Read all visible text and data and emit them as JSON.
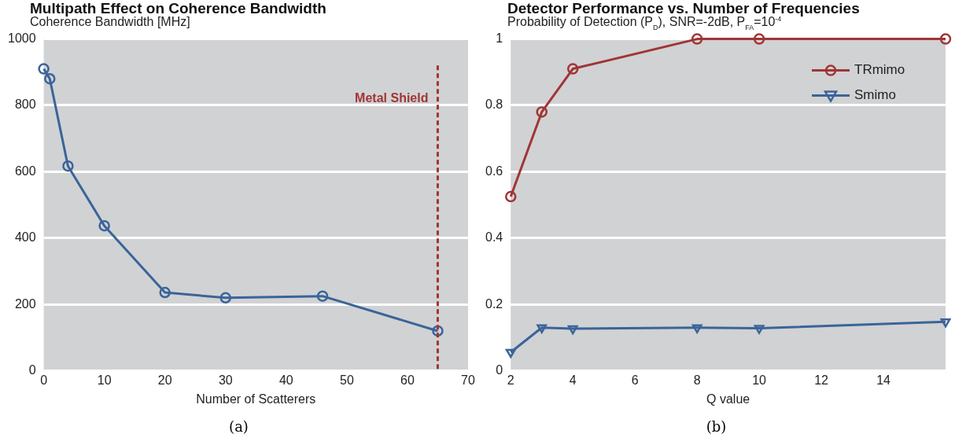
{
  "chart_data": [
    {
      "type": "line",
      "title": "Multipath Effect on Coherence Bandwidth",
      "ylabel": "Coherence Bandwidth [MHz]",
      "xlabel": "Number of Scatterers",
      "x": [
        0,
        1,
        4,
        10,
        20,
        30,
        46,
        65
      ],
      "series": [
        {
          "color": "#3a6499",
          "values": [
            910,
            880,
            617,
            437,
            236,
            220,
            225,
            120
          ]
        }
      ],
      "xlim": [
        0,
        70
      ],
      "xticks": [
        0,
        10,
        20,
        30,
        40,
        50,
        60,
        70
      ],
      "ylim": [
        0,
        1000
      ],
      "yticks": [
        0,
        200,
        400,
        600,
        800,
        1000
      ],
      "grid": "y",
      "legend": false,
      "marker": "circle",
      "line_style": "solid",
      "ref_lines": [
        {
          "axis": "x",
          "value": 65,
          "label": "Metal Shield",
          "color": "#a03535",
          "line_style": "dashed"
        }
      ],
      "annotations": [
        "(a)"
      ]
    },
    {
      "type": "line",
      "title": "Detector Performance vs. Number of Frequencies",
      "ylabel": "Probability of Detection (P$_{D}$), SNR=-2dB, P$_{FA}$=10$^{-4}$",
      "xlabel": "Q value",
      "x": [
        2,
        3,
        4,
        8,
        10,
        16
      ],
      "series": [
        {
          "name": "TRmimo",
          "color": "#a03535",
          "marker": "circle",
          "values": [
            0.525,
            0.78,
            0.91,
            1,
            1,
            1
          ]
        },
        {
          "name": "Smimo",
          "color": "#3a6499",
          "marker": "triangle",
          "values": [
            0.056,
            0.13,
            0.127,
            0.13,
            0.128,
            0.148
          ]
        }
      ],
      "xlim": [
        2,
        16
      ],
      "xticks": [
        2,
        4,
        6,
        8,
        10,
        12,
        14
      ],
      "ylim": [
        0,
        1
      ],
      "yticks": [
        0,
        0.2,
        0.4,
        0.6,
        0.8,
        1
      ],
      "grid": "y",
      "legend": "top right",
      "line_style": "solid",
      "annotations": [
        "(b)"
      ]
    }
  ]
}
